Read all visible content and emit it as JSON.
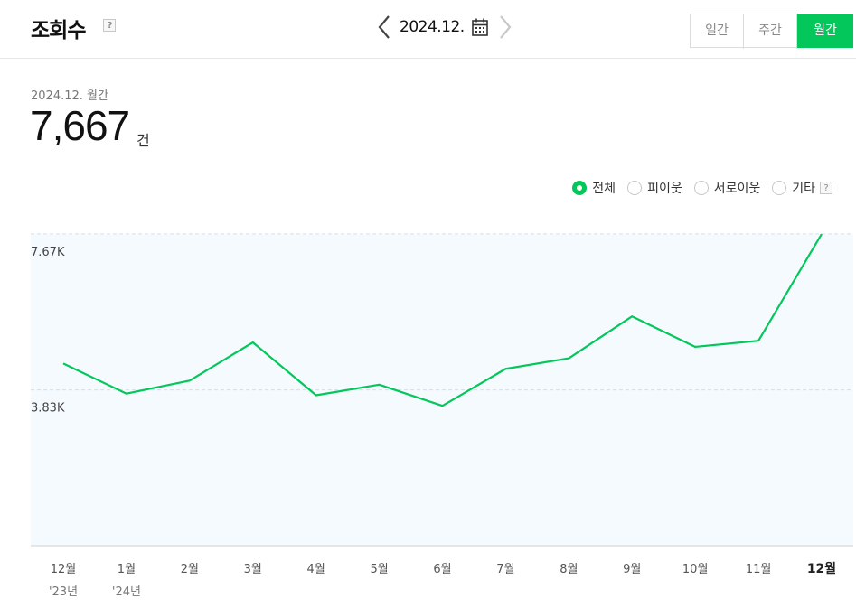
{
  "header": {
    "title": "조회수",
    "help": "?",
    "date": "2024.12.",
    "periods": [
      {
        "label": "일간",
        "active": false
      },
      {
        "label": "주간",
        "active": false
      },
      {
        "label": "월간",
        "active": true
      }
    ]
  },
  "summary": {
    "period": "2024.12. 월간",
    "value": "7,667",
    "unit": "건"
  },
  "filters": {
    "options": [
      {
        "label": "전체",
        "selected": true
      },
      {
        "label": "피이웃",
        "selected": false
      },
      {
        "label": "서로이웃",
        "selected": false
      },
      {
        "label": "기타",
        "selected": false
      }
    ],
    "help": "?"
  },
  "colors": {
    "accent": "#03c75a",
    "chart_bg": "#f5faff",
    "grid": "#cfe0f0"
  },
  "chart_data": {
    "type": "line",
    "x": [
      "12월",
      "1월",
      "2월",
      "3월",
      "4월",
      "5월",
      "6월",
      "7월",
      "8월",
      "9월",
      "10월",
      "11월",
      "12월"
    ],
    "x_sublabels": [
      "'23년",
      "'24년",
      "",
      "",
      "",
      "",
      "",
      "",
      "",
      "",
      "",
      "",
      ""
    ],
    "series": [
      {
        "values": [
          4480,
          3740,
          4060,
          5000,
          3700,
          3960,
          3440,
          4350,
          4610,
          5640,
          4890,
          5040,
          7667
        ]
      }
    ],
    "ytick_values": [
      7670,
      3830
    ],
    "ytick_labels": [
      "7.67K",
      "3.83K"
    ],
    "ylim": [
      0,
      7667
    ],
    "highlight_last": true
  }
}
